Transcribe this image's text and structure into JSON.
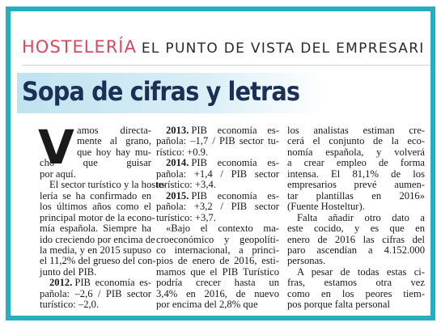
{
  "header": {
    "section": "HOSTELERÍA",
    "kicker": "EL PUNTO DE VISTA DEL EMPRESARI"
  },
  "title": "Sopa de cifras y letras",
  "columns": [
    {
      "paragraphs": [
        {
          "drop_cap": "V",
          "lines": [
            "amos directa-",
            "mente al grano,",
            "que hoy hay mu-",
            "cho que guisar",
            "por aquí."
          ]
        },
        {
          "lines": [
            "El sector turístico y la hoste-",
            "lería se ha confirmado en",
            "los últimos años como el",
            "principal motor de la econo-",
            "mía española. Siempre ha",
            "ido creciendo por encima de",
            "la media, y en 2015 supuso",
            "el 11,2% del grueso del con-",
            "junto del PIB."
          ]
        },
        {
          "lead": "2012.",
          "lines": [
            "PIB economía es-",
            "pañola: –2,6 / PIB sector",
            "turístico: –2,0."
          ]
        }
      ]
    },
    {
      "paragraphs": [
        {
          "lead": "2013.",
          "lines": [
            "PIB economía es-",
            "pañola: –1,7 / PIB sector tu-",
            "rístico: +0.9."
          ]
        },
        {
          "lead": "2014.",
          "lines": [
            "PIB economía es-",
            "pañola: +1,4 / PIB sector",
            "turístico: +3,4."
          ]
        },
        {
          "lead": "2015.",
          "lines": [
            "PIB economía es-",
            "pañola: +3,2 / PIB sector",
            "turístico: +3,7."
          ]
        },
        {
          "lines": [
            "«Bajo el contexto ma-",
            "croeconómico y geopolíti-",
            "co internacional, a princi-",
            "pios de enero de 2016, esti-",
            "mamos que el PIB Turístico",
            "podría crecer hasta un",
            "3,4% en 2016, de nuevo",
            "por encima del 2,8% que"
          ]
        }
      ]
    },
    {
      "paragraphs": [
        {
          "lines": [
            "los analistas estiman cre-",
            "cerá el conjunto de la eco-",
            "nomía española, y volverá",
            "a crear empleo de forma",
            "intensa. El 81,1% de los",
            "empresarios prevé aumen-",
            "tar plantillas en 2016»",
            "(Fuente Hosteltur)."
          ]
        },
        {
          "lines": [
            "Falta añadir otro dato a",
            "este cocido, y es que en",
            "enero de 2016 las cifras del",
            "paro ascendían a 4.152.000",
            "personas."
          ]
        },
        {
          "lines": [
            "A pesar de todas estas ci-",
            "fras, estamos otra vez",
            "como en los peores tiem-",
            "pos porque falta personal"
          ]
        }
      ]
    }
  ]
}
